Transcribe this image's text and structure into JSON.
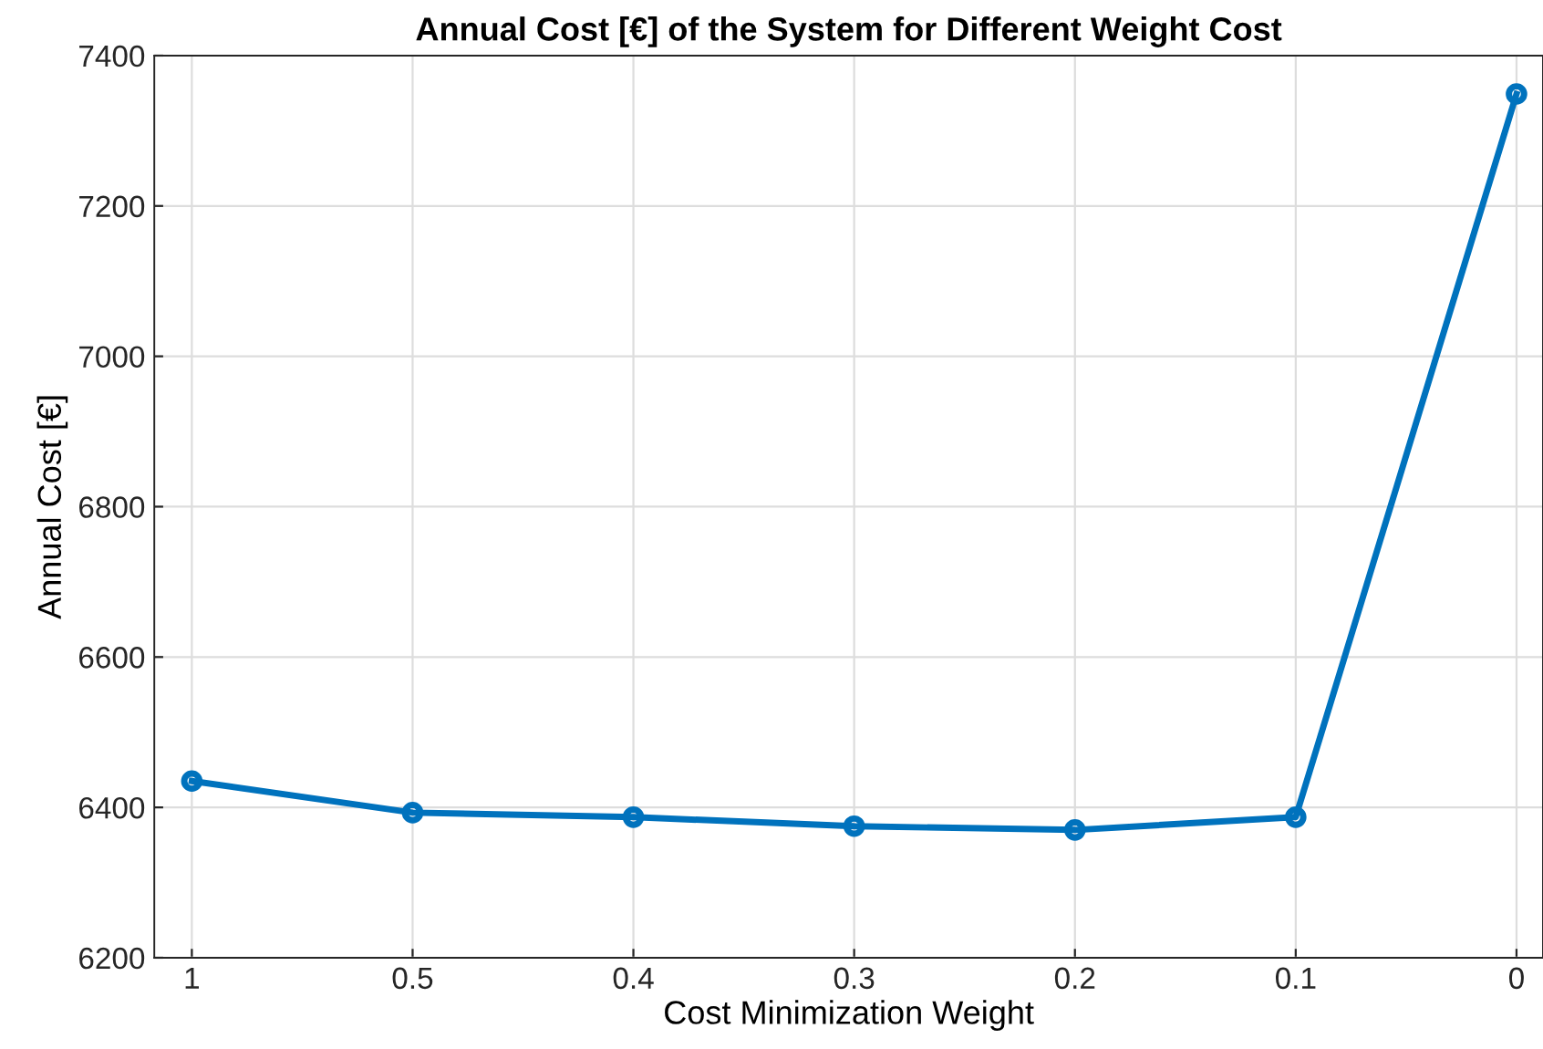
{
  "chart_data": {
    "type": "line",
    "title": "Annual Cost [€] of the System for Different Weight Cost",
    "xlabel": "Cost Minimization Weight",
    "ylabel": "Annual Cost [€]",
    "categories": [
      "1",
      "0.5",
      "0.4",
      "0.3",
      "0.2",
      "0.1",
      "0"
    ],
    "series": [
      {
        "color": "#0072bd",
        "values": [
          6435,
          6393,
          6387,
          6375,
          6370,
          6387,
          7349
        ]
      }
    ],
    "ylim": [
      6200,
      7400
    ],
    "yticks": [
      6200,
      6400,
      6600,
      6800,
      7000,
      7200,
      7400
    ],
    "grid": true,
    "marker": "circle",
    "line_style": "solid"
  }
}
